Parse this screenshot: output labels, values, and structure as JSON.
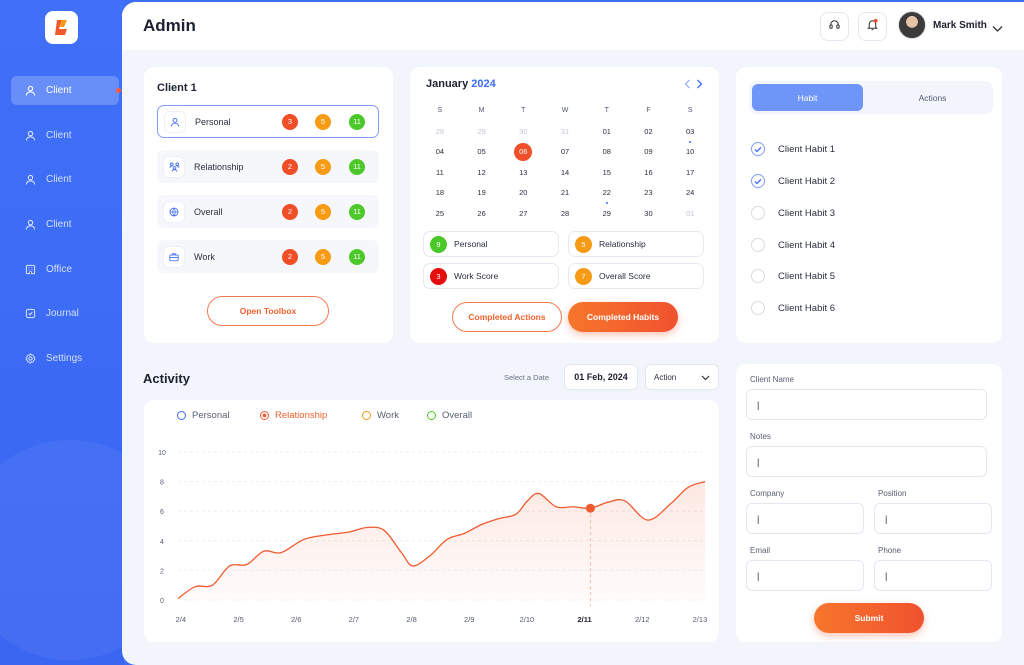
{
  "colors": {
    "accent": "#3d6cf5",
    "orange": "#f05a2f",
    "red": "#f04e27",
    "amber": "#f79a14",
    "green": "#4cc82a"
  },
  "sidebar": {
    "logo": "logo-icon",
    "items": [
      {
        "label": "Client",
        "icon": "user-icon",
        "active": true
      },
      {
        "label": "Client",
        "icon": "user-icon"
      },
      {
        "label": "Client",
        "icon": "user-icon"
      },
      {
        "label": "Client",
        "icon": "user-icon"
      },
      {
        "label": "Office",
        "icon": "building-icon"
      },
      {
        "label": "Journal",
        "icon": "journal-icon"
      },
      {
        "label": "Settings",
        "icon": "gear-icon"
      }
    ]
  },
  "header": {
    "title": "Admin",
    "user_name": "Mark Smith"
  },
  "client_card": {
    "title": "Client 1",
    "rows": [
      {
        "label": "Personal",
        "red": "3",
        "orange": "5",
        "green": "11",
        "icon": "user-icon"
      },
      {
        "label": "Relationship",
        "red": "2",
        "orange": "5",
        "green": "11",
        "icon": "people-icon"
      },
      {
        "label": "Overall",
        "red": "2",
        "orange": "5",
        "green": "11",
        "icon": "globe-icon"
      },
      {
        "label": "Work",
        "red": "2",
        "orange": "5",
        "green": "11",
        "icon": "briefcase-icon"
      }
    ],
    "button": "Open Toolbox"
  },
  "calendar": {
    "month": "January",
    "year": "2024",
    "dow": [
      "S",
      "M",
      "T",
      "W",
      "T",
      "F",
      "S"
    ],
    "weeks": [
      [
        "28",
        "29",
        "30",
        "31",
        "01",
        "02",
        "03"
      ],
      [
        "04",
        "05",
        "06",
        "07",
        "08",
        "09",
        "10"
      ],
      [
        "11",
        "12",
        "13",
        "14",
        "15",
        "16",
        "17"
      ],
      [
        "18",
        "19",
        "20",
        "21",
        "22",
        "23",
        "24"
      ],
      [
        "25",
        "26",
        "27",
        "28",
        "29",
        "30",
        "01"
      ]
    ],
    "scores": [
      {
        "value": "9",
        "label": "Personal"
      },
      {
        "value": "5",
        "label": "Relationship"
      },
      {
        "value": "3",
        "label": "Work Score"
      },
      {
        "value": "7",
        "label": "Overall Score"
      }
    ],
    "btn_actions": "Completed Actions",
    "btn_habits": "Completed Habits"
  },
  "habits": {
    "tab_habit": "Habit",
    "tab_actions": "Actions",
    "items": [
      {
        "label": "Client Habit 1",
        "checked": true
      },
      {
        "label": "Client Habit 2",
        "checked": true
      },
      {
        "label": "Client Habit 3",
        "checked": false
      },
      {
        "label": "Client Habit 4",
        "checked": false
      },
      {
        "label": "Client Habit 5",
        "checked": false
      },
      {
        "label": "Client Habit 6",
        "checked": false
      }
    ]
  },
  "activity": {
    "title": "Activity",
    "select_date_label": "Select a Date",
    "date_value": "01 Feb, 2024",
    "action_select": "Action"
  },
  "chart_data": {
    "type": "line",
    "legend": [
      {
        "name": "Personal",
        "color": "#3d6cf5"
      },
      {
        "name": "Relationship",
        "color": "#f05a2f",
        "active": true
      },
      {
        "name": "Work",
        "color": "#f79a14"
      },
      {
        "name": "Overall",
        "color": "#4cc82a"
      }
    ],
    "x_ticks": [
      "2/4",
      "2/5",
      "2/6",
      "2/7",
      "2/8",
      "2/9",
      "2/10",
      "2/11",
      "2/12",
      "2/13"
    ],
    "highlight_tick": "2/11",
    "y_ticks": [
      "0",
      "2",
      "4",
      "6",
      "8",
      "10"
    ],
    "ylim": [
      0,
      10
    ],
    "xlim": [
      0,
      9.2
    ],
    "series": [
      {
        "name": "Relationship",
        "color": "#f05a2f",
        "x": [
          0,
          0.3,
          0.6,
          0.9,
          1.2,
          1.5,
          1.8,
          2.2,
          2.6,
          3.0,
          3.3,
          3.6,
          3.9,
          4.1,
          4.4,
          4.7,
          5.0,
          5.3,
          5.6,
          5.9,
          6.1,
          6.3,
          6.6,
          6.9,
          7.2,
          7.5,
          7.8,
          8.2,
          8.6,
          8.9,
          9.2
        ],
        "y": [
          0.1,
          0.9,
          1.0,
          2.3,
          2.4,
          3.3,
          3.2,
          4.1,
          4.4,
          4.6,
          4.9,
          4.7,
          3.2,
          2.3,
          3.0,
          4.1,
          4.5,
          5.1,
          5.5,
          5.8,
          6.7,
          7.2,
          6.3,
          6.3,
          6.2,
          6.6,
          6.7,
          5.4,
          6.5,
          7.6,
          8.0
        ]
      }
    ],
    "highlight_point": {
      "x": 7.2,
      "y": 6.2
    }
  },
  "form": {
    "client_name_label": "Client Name",
    "notes_label": "Notes",
    "company_label": "Company",
    "position_label": "Position",
    "email_label": "Email",
    "phone_label": "Phone",
    "input_value": "|",
    "submit": "Submit"
  }
}
